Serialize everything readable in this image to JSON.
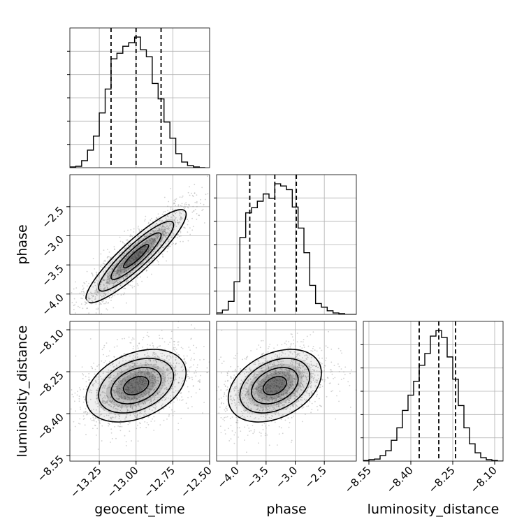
{
  "chart_data": {
    "type": "corner",
    "parameters": [
      "geocent_time",
      "phase",
      "luminosity_distance"
    ],
    "axis_labels": {
      "geocent_time": "geocent_time",
      "phase": "phase",
      "luminosity_distance": "luminosity_distance"
    },
    "ranges": {
      "geocent_time": [
        -13.45,
        -12.5
      ],
      "phase": [
        -4.35,
        -1.95
      ],
      "luminosity_distance": [
        -8.57,
        -8.07
      ]
    },
    "ticks": {
      "geocent_time": [
        -13.25,
        -13.0,
        -12.75,
        -12.5
      ],
      "phase": [
        -4.0,
        -3.5,
        -3.0,
        -2.5
      ],
      "luminosity_distance": [
        -8.55,
        -8.4,
        -8.25,
        -8.1
      ]
    },
    "tick_labels": {
      "geocent_time": [
        "−13.25",
        "−13.00",
        "−12.75",
        "−12.50"
      ],
      "phase": [
        "−4.0",
        "−3.5",
        "−3.0",
        "−2.5"
      ],
      "luminosity_distance": [
        "−8.55",
        "−8.40",
        "−8.25",
        "−8.10"
      ]
    },
    "quantiles": {
      "geocent_time": [
        -13.17,
        -13.0,
        -12.83
      ],
      "phase": [
        -3.78,
        -3.35,
        -2.98
      ],
      "luminosity_distance": [
        -8.37,
        -8.3,
        -8.24
      ]
    },
    "histograms": {
      "geocent_time": {
        "edges": [
          -13.45,
          -13.41,
          -13.37,
          -13.33,
          -13.29,
          -13.25,
          -13.21,
          -13.17,
          -13.13,
          -13.09,
          -13.05,
          -13.01,
          -12.97,
          -12.93,
          -12.89,
          -12.85,
          -12.81,
          -12.77,
          -12.73,
          -12.69,
          -12.65,
          -12.61,
          -12.57,
          -12.53
        ],
        "counts": [
          1,
          2,
          10,
          25,
          45,
          78,
          112,
          155,
          163,
          173,
          178,
          186,
          168,
          158,
          120,
          98,
          65,
          42,
          20,
          8,
          3,
          1,
          0
        ]
      },
      "phase": {
        "edges": [
          -4.35,
          -4.25,
          -4.15,
          -4.05,
          -3.95,
          -3.85,
          -3.75,
          -3.65,
          -3.55,
          -3.45,
          -3.35,
          -3.25,
          -3.15,
          -3.05,
          -2.95,
          -2.85,
          -2.75,
          -2.65,
          -2.55,
          -2.45,
          -2.35,
          -2.25,
          -2.15,
          -2.05,
          -1.95
        ],
        "counts": [
          2,
          6,
          18,
          45,
          106,
          140,
          147,
          156,
          166,
          160,
          180,
          177,
          172,
          148,
          119,
          85,
          40,
          15,
          10,
          5,
          2,
          1,
          0,
          0
        ]
      },
      "luminosity_distance": {
        "edges": [
          -8.57,
          -8.55,
          -8.53,
          -8.51,
          -8.49,
          -8.47,
          -8.45,
          -8.43,
          -8.41,
          -8.39,
          -8.37,
          -8.35,
          -8.33,
          -8.31,
          -8.29,
          -8.27,
          -8.25,
          -8.23,
          -8.21,
          -8.19,
          -8.17,
          -8.15,
          -8.13,
          -8.11,
          -8.09,
          -8.07
        ],
        "counts": [
          1,
          2,
          3,
          8,
          15,
          30,
          48,
          73,
          95,
          115,
          138,
          155,
          180,
          188,
          178,
          150,
          118,
          80,
          48,
          25,
          12,
          5,
          2,
          1,
          0
        ]
      }
    },
    "correlations": {
      "phase_vs_geocent_time": 0.9,
      "luminosity_distance_vs_geocent_time": 0.35,
      "luminosity_distance_vs_phase": 0.35
    },
    "grid": true,
    "colors": {
      "line": "#000000",
      "scatter": "#9a9a9a",
      "grid": "#b0b0b0"
    }
  }
}
